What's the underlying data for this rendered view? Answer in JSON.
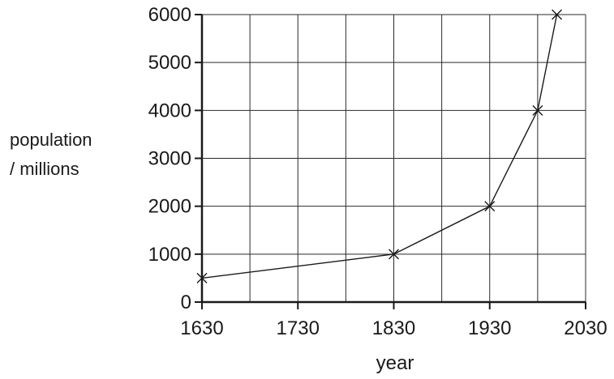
{
  "chart_data": {
    "type": "line",
    "xlabel": "year",
    "ylabel_lines": [
      "population",
      "/ millions"
    ],
    "xlim": [
      1630,
      2030
    ],
    "ylim": [
      0,
      6000
    ],
    "x_ticks": [
      1630,
      1730,
      1830,
      1930,
      2030
    ],
    "y_ticks": [
      0,
      1000,
      2000,
      3000,
      4000,
      5000,
      6000
    ],
    "x_ticks_text": [
      "1630",
      "1730",
      "1830",
      "1930",
      "2030"
    ],
    "y_ticks_text": [
      "0",
      "1000",
      "2000",
      "3000",
      "4000",
      "5000",
      "6000"
    ],
    "x_grid_step": 50,
    "y_grid_step": 1000,
    "grid": true,
    "marker": "x",
    "series": [
      {
        "x": [
          1630,
          1830,
          1930,
          1980,
          2000
        ],
        "y": [
          500,
          1000,
          2000,
          4000,
          6000
        ]
      }
    ]
  }
}
